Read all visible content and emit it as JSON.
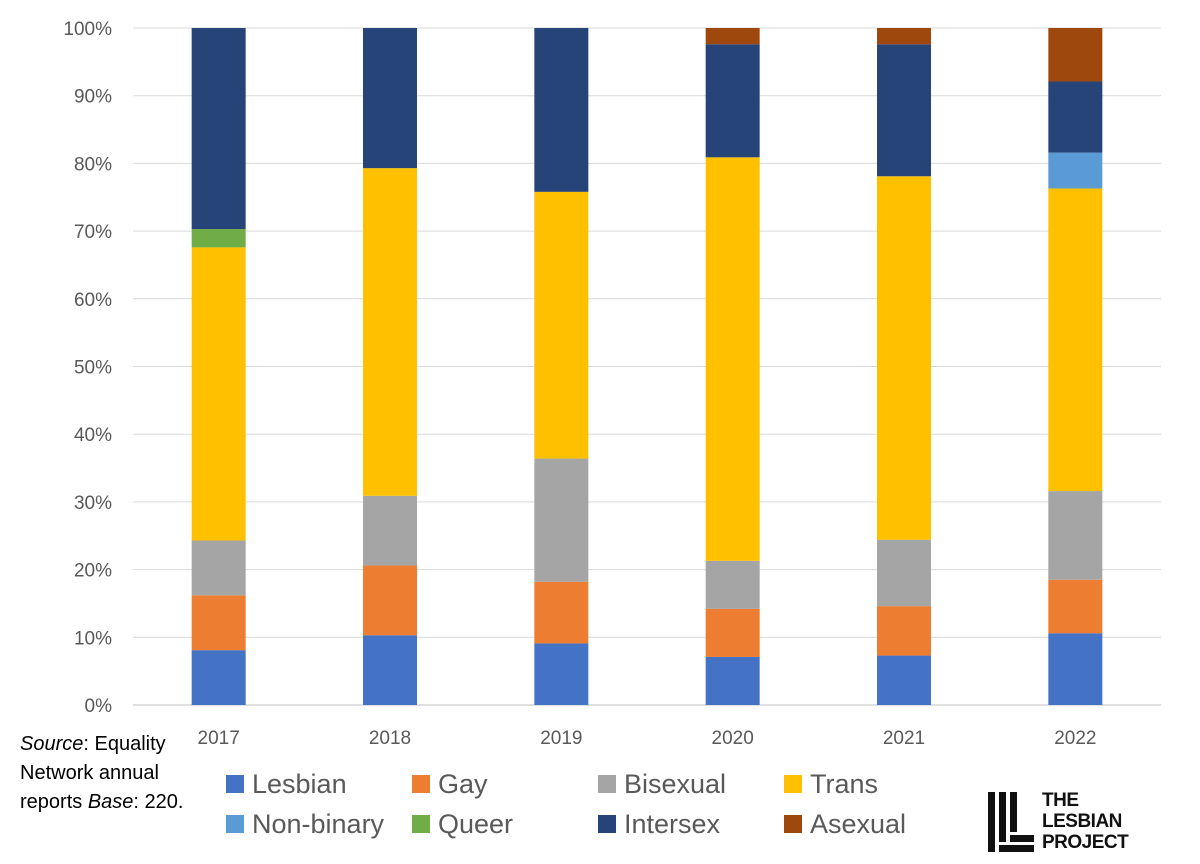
{
  "chart_data": {
    "type": "bar",
    "stacked": true,
    "categories": [
      "2017",
      "2018",
      "2019",
      "2020",
      "2021",
      "2022"
    ],
    "yticks": [
      "0%",
      "10%",
      "20%",
      "30%",
      "40%",
      "50%",
      "60%",
      "70%",
      "80%",
      "90%",
      "100%"
    ],
    "ylim": [
      0,
      100
    ],
    "grid": true,
    "legend_position": "bottom",
    "series": [
      {
        "name": "Lesbian",
        "color": "#4472C4",
        "values": [
          8.1,
          10.3,
          9.1,
          7.1,
          7.3,
          10.6
        ]
      },
      {
        "name": "Gay",
        "color": "#ED7D31",
        "values": [
          8.1,
          10.3,
          9.1,
          7.1,
          7.3,
          7.9
        ]
      },
      {
        "name": "Bisexual",
        "color": "#A5A5A5",
        "values": [
          8.1,
          10.3,
          18.2,
          7.1,
          9.8,
          13.1
        ]
      },
      {
        "name": "Trans",
        "color": "#FFC000",
        "values": [
          43.3,
          48.4,
          39.4,
          59.6,
          53.7,
          44.7
        ]
      },
      {
        "name": "Non-binary",
        "color": "#5B9BD5",
        "values": [
          0,
          0,
          0,
          0,
          0,
          5.3
        ]
      },
      {
        "name": "Queer",
        "color": "#70AD47",
        "values": [
          2.7,
          0,
          0,
          0,
          0,
          0
        ]
      },
      {
        "name": "Intersex",
        "color": "#264478",
        "values": [
          29.7,
          20.7,
          24.2,
          16.7,
          19.5,
          10.5
        ]
      },
      {
        "name": "Asexual",
        "color": "#9E480E",
        "values": [
          0,
          0,
          0,
          2.4,
          2.4,
          7.9
        ]
      }
    ]
  },
  "source_note": {
    "label": "Source",
    "text_1": ": Equality Network annual reports ",
    "base_label": "Base",
    "text_2": ": 220."
  },
  "logo": {
    "line1": "THE",
    "line2": "LESBIAN",
    "line3": "PROJECT"
  }
}
